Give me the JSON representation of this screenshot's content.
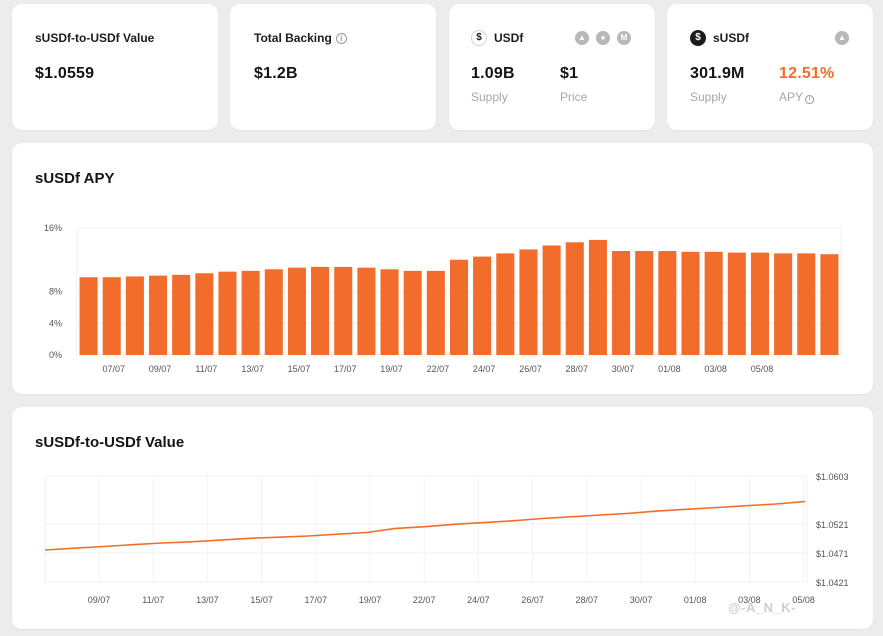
{
  "cards": {
    "ratio": {
      "label": "sUSDf-to-USDf Value",
      "value": "$1.0559"
    },
    "backing": {
      "label": "Total Backing",
      "value": "$1.2B"
    },
    "usdf": {
      "label": "USDf",
      "supply_value": "1.09B",
      "supply_label": "Supply",
      "price_value": "$1",
      "price_label": "Price",
      "icons": [
        "chart-link-icon",
        "pancake-link-icon",
        "coinmarketcap-link-icon"
      ]
    },
    "susdf": {
      "label": "sUSDf",
      "supply_value": "301.9M",
      "supply_label": "Supply",
      "apy_value": "12.51%",
      "apy_label": "APY",
      "icons": [
        "chart-link-icon"
      ]
    }
  },
  "colors": {
    "accent": "#f26d2b",
    "background": "#ececec"
  },
  "chart_data": [
    {
      "type": "bar",
      "title": "sUSDf APY",
      "y_ticks": [
        "16%",
        "8%",
        "4%",
        "0%"
      ],
      "ylim": [
        0,
        16
      ],
      "x_tick_labels": [
        "07/07",
        "09/07",
        "11/07",
        "13/07",
        "15/07",
        "17/07",
        "19/07",
        "22/07",
        "24/07",
        "26/07",
        "28/07",
        "30/07",
        "01/08",
        "03/08",
        "05/08"
      ],
      "values": [
        9.8,
        9.8,
        9.9,
        10.0,
        10.1,
        10.3,
        10.5,
        10.6,
        10.8,
        11.0,
        11.1,
        11.1,
        11.0,
        10.8,
        10.6,
        10.6,
        12.0,
        12.4,
        12.8,
        13.3,
        13.8,
        14.2,
        14.5,
        13.1,
        13.1,
        13.1,
        13.0,
        13.0,
        12.9,
        12.9,
        12.8,
        12.8,
        12.7
      ]
    },
    {
      "type": "line",
      "title": "sUSDf-to-USDf Value",
      "y_ticks": [
        "$1.0603",
        "$1.0521",
        "$1.0471",
        "$1.0421"
      ],
      "ylim": [
        1.0421,
        1.0603
      ],
      "x_tick_labels": [
        "09/07",
        "11/07",
        "13/07",
        "15/07",
        "17/07",
        "19/07",
        "22/07",
        "24/07",
        "26/07",
        "28/07",
        "30/07",
        "01/08",
        "03/08",
        "05/08"
      ],
      "series": [
        {
          "values": [
            1.0476,
            1.0479,
            1.0482,
            1.0485,
            1.0488,
            1.049,
            1.0493,
            1.0496,
            1.0498,
            1.05,
            1.0503,
            1.0506,
            1.0513,
            1.0516,
            1.052,
            1.0523,
            1.0526,
            1.053,
            1.0533,
            1.0536,
            1.0539,
            1.0543,
            1.0546,
            1.0549,
            1.0552,
            1.0555,
            1.0559
          ]
        }
      ]
    }
  ],
  "watermark": "@-A_N_K-"
}
